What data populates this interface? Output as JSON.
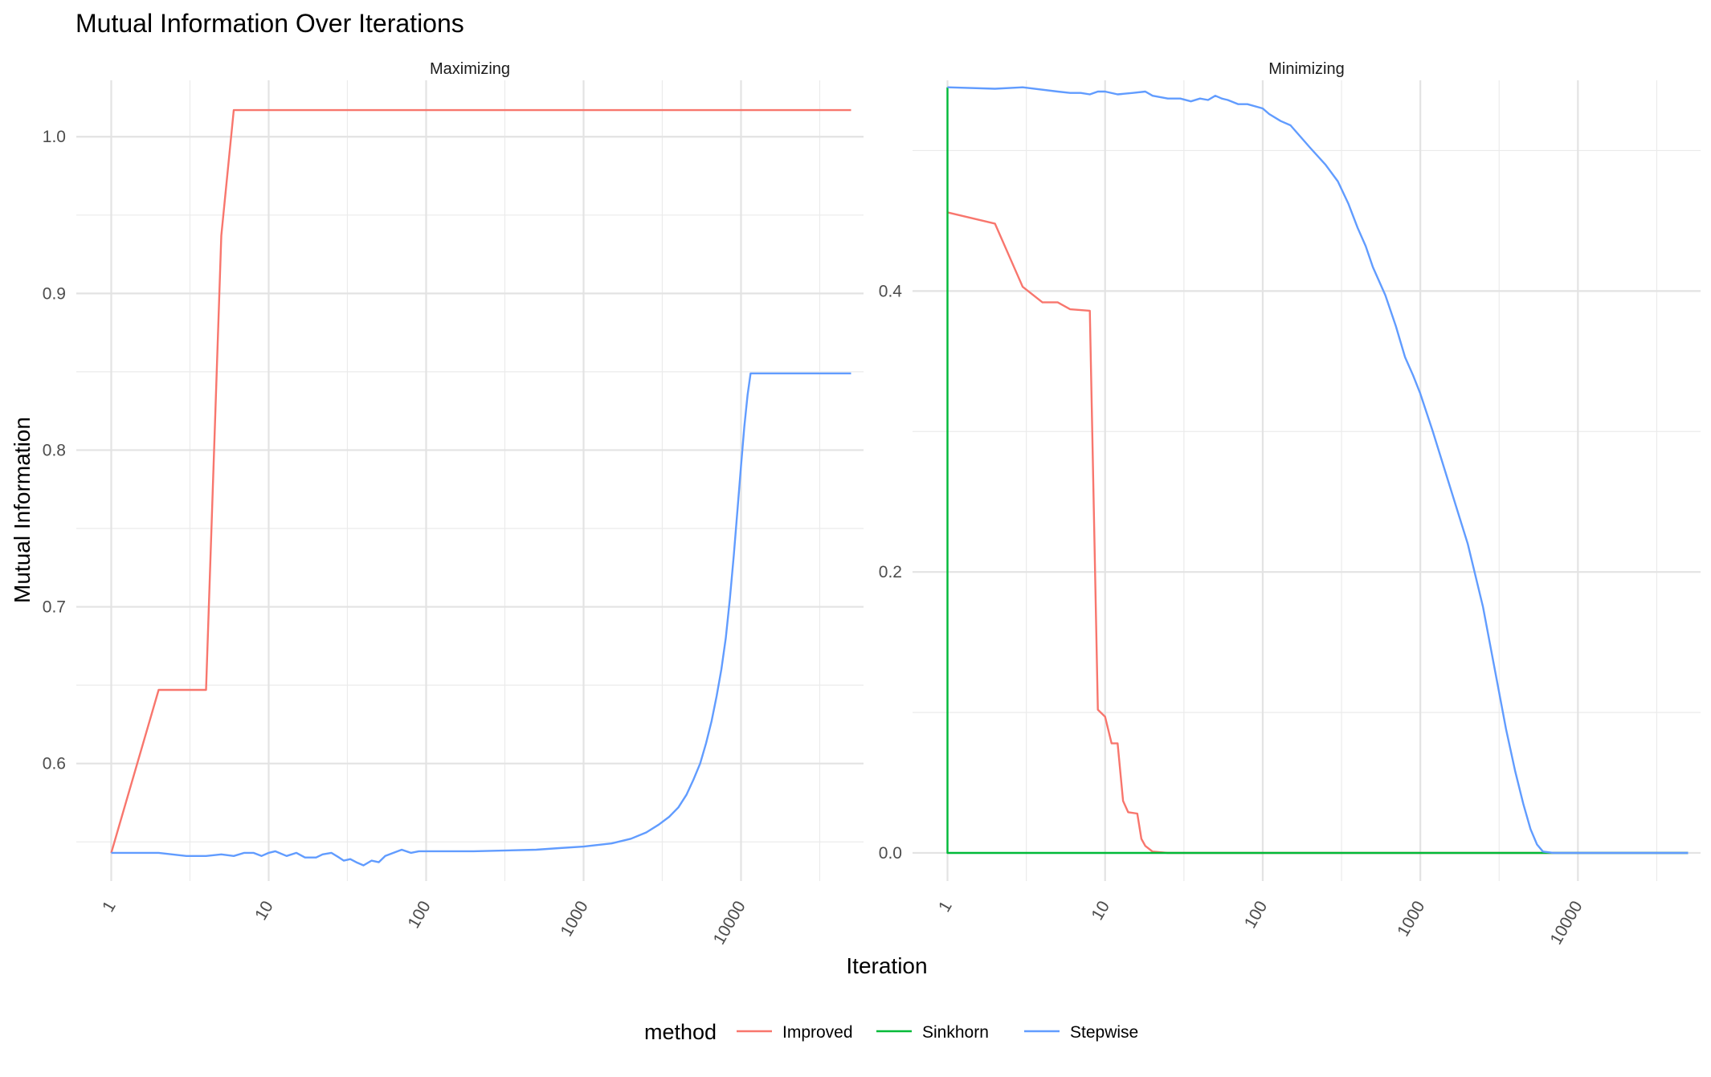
{
  "title": "Mutual Information Over Iterations",
  "xlabel": "Iteration",
  "ylabel": "Mutual Information",
  "legend": {
    "title": "method",
    "placement": "bottom",
    "entries": [
      {
        "name": "Improved",
        "color": "#F8766D"
      },
      {
        "name": "Sinkhorn",
        "color": "#00BA38"
      },
      {
        "name": "Stepwise",
        "color": "#619CFF"
      }
    ]
  },
  "chart_data": {
    "type": "line",
    "title": "Mutual Information Over Iterations",
    "xlabel": "Iteration",
    "ylabel": "Mutual Information",
    "x_scale": "log10",
    "grid": true,
    "legend_placement": "bottom",
    "facets": [
      {
        "name": "Maximizing",
        "xlim": [
          0.6,
          60000
        ],
        "ylim": [
          0.525,
          1.036
        ],
        "x_ticks": [
          1,
          10,
          100,
          1000,
          10000
        ],
        "x_tick_labels": [
          "1",
          "10",
          "100",
          "1000",
          "10000"
        ],
        "y_ticks": [
          0.6,
          0.7,
          0.8,
          0.9,
          1.0
        ],
        "y_tick_labels": [
          "0.6",
          "0.7",
          "0.8",
          "0.9",
          "1.0"
        ],
        "series": [
          {
            "name": "Improved",
            "color": "#F8766D",
            "points": [
              [
                1,
                0.543
              ],
              [
                2,
                0.647
              ],
              [
                4,
                0.647
              ],
              [
                5,
                0.937
              ],
              [
                6,
                1.017
              ],
              [
                50000,
                1.017
              ]
            ]
          },
          {
            "name": "Stepwise",
            "color": "#619CFF",
            "points": [
              [
                1,
                0.543
              ],
              [
                2,
                0.543
              ],
              [
                3,
                0.541
              ],
              [
                4,
                0.541
              ],
              [
                5,
                0.542
              ],
              [
                6,
                0.541
              ],
              [
                7,
                0.543
              ],
              [
                8,
                0.543
              ],
              [
                9,
                0.541
              ],
              [
                10,
                0.543
              ],
              [
                11,
                0.544
              ],
              [
                13,
                0.541
              ],
              [
                15,
                0.543
              ],
              [
                17,
                0.54
              ],
              [
                20,
                0.54
              ],
              [
                22,
                0.542
              ],
              [
                25,
                0.543
              ],
              [
                28,
                0.54
              ],
              [
                30,
                0.538
              ],
              [
                33,
                0.539
              ],
              [
                36,
                0.537
              ],
              [
                40,
                0.535
              ],
              [
                45,
                0.538
              ],
              [
                50,
                0.537
              ],
              [
                55,
                0.541
              ],
              [
                62,
                0.543
              ],
              [
                70,
                0.545
              ],
              [
                80,
                0.543
              ],
              [
                90,
                0.544
              ],
              [
                100,
                0.544
              ],
              [
                200,
                0.544
              ],
              [
                500,
                0.545
              ],
              [
                700,
                0.546
              ],
              [
                1000,
                0.547
              ],
              [
                1500,
                0.549
              ],
              [
                2000,
                0.552
              ],
              [
                2500,
                0.556
              ],
              [
                3000,
                0.561
              ],
              [
                3500,
                0.566
              ],
              [
                4000,
                0.572
              ],
              [
                4500,
                0.58
              ],
              [
                5000,
                0.59
              ],
              [
                5500,
                0.6
              ],
              [
                6000,
                0.613
              ],
              [
                6500,
                0.627
              ],
              [
                7000,
                0.643
              ],
              [
                7500,
                0.66
              ],
              [
                8000,
                0.68
              ],
              [
                8500,
                0.705
              ],
              [
                9000,
                0.733
              ],
              [
                9500,
                0.762
              ],
              [
                10000,
                0.79
              ],
              [
                10500,
                0.815
              ],
              [
                11000,
                0.835
              ],
              [
                11500,
                0.849
              ],
              [
                50000,
                0.849
              ]
            ]
          }
        ]
      },
      {
        "name": "Minimizing",
        "xlim": [
          0.6,
          60000
        ],
        "ylim": [
          -0.02,
          0.55
        ],
        "x_ticks": [
          1,
          10,
          100,
          1000,
          10000
        ],
        "x_tick_labels": [
          "1",
          "10",
          "100",
          "1000",
          "10000"
        ],
        "y_ticks": [
          0.0,
          0.2,
          0.4
        ],
        "y_tick_labels": [
          "0.0",
          "0.2",
          "0.4"
        ],
        "series": [
          {
            "name": "Improved",
            "color": "#F8766D",
            "points": [
              [
                1,
                0.456
              ],
              [
                2,
                0.448
              ],
              [
                3,
                0.403
              ],
              [
                4,
                0.392
              ],
              [
                5,
                0.392
              ],
              [
                6,
                0.387
              ],
              [
                8,
                0.386
              ],
              [
                9,
                0.102
              ],
              [
                10,
                0.097
              ],
              [
                11,
                0.078
              ],
              [
                12,
                0.078
              ],
              [
                13,
                0.037
              ],
              [
                14,
                0.029
              ],
              [
                16,
                0.028
              ],
              [
                17,
                0.01
              ],
              [
                18,
                0.005
              ],
              [
                20,
                0.001
              ],
              [
                25,
                0.0
              ],
              [
                50000,
                0.0
              ]
            ]
          },
          {
            "name": "Sinkhorn",
            "color": "#00BA38",
            "points": [
              [
                1,
                0.545
              ],
              [
                1,
                0.0
              ],
              [
                50000,
                0.0
              ]
            ]
          },
          {
            "name": "Stepwise",
            "color": "#619CFF",
            "points": [
              [
                1,
                0.545
              ],
              [
                2,
                0.544
              ],
              [
                3,
                0.545
              ],
              [
                5,
                0.542
              ],
              [
                6,
                0.541
              ],
              [
                7,
                0.541
              ],
              [
                8,
                0.54
              ],
              [
                9,
                0.542
              ],
              [
                10,
                0.542
              ],
              [
                12,
                0.54
              ],
              [
                15,
                0.541
              ],
              [
                18,
                0.542
              ],
              [
                20,
                0.539
              ],
              [
                25,
                0.537
              ],
              [
                30,
                0.537
              ],
              [
                35,
                0.535
              ],
              [
                40,
                0.537
              ],
              [
                45,
                0.536
              ],
              [
                50,
                0.539
              ],
              [
                55,
                0.537
              ],
              [
                60,
                0.536
              ],
              [
                70,
                0.533
              ],
              [
                80,
                0.533
              ],
              [
                100,
                0.53
              ],
              [
                110,
                0.526
              ],
              [
                130,
                0.521
              ],
              [
                150,
                0.518
              ],
              [
                200,
                0.502
              ],
              [
                250,
                0.49
              ],
              [
                300,
                0.478
              ],
              [
                350,
                0.462
              ],
              [
                400,
                0.445
              ],
              [
                450,
                0.432
              ],
              [
                500,
                0.417
              ],
              [
                600,
                0.397
              ],
              [
                700,
                0.375
              ],
              [
                800,
                0.353
              ],
              [
                900,
                0.34
              ],
              [
                1000,
                0.327
              ],
              [
                1200,
                0.3
              ],
              [
                1500,
                0.265
              ],
              [
                2000,
                0.22
              ],
              [
                2500,
                0.175
              ],
              [
                3000,
                0.128
              ],
              [
                3500,
                0.088
              ],
              [
                4000,
                0.058
              ],
              [
                4500,
                0.035
              ],
              [
                5000,
                0.017
              ],
              [
                5500,
                0.006
              ],
              [
                6000,
                0.001
              ],
              [
                7000,
                0.0
              ],
              [
                50000,
                0.0
              ]
            ]
          }
        ]
      }
    ]
  }
}
